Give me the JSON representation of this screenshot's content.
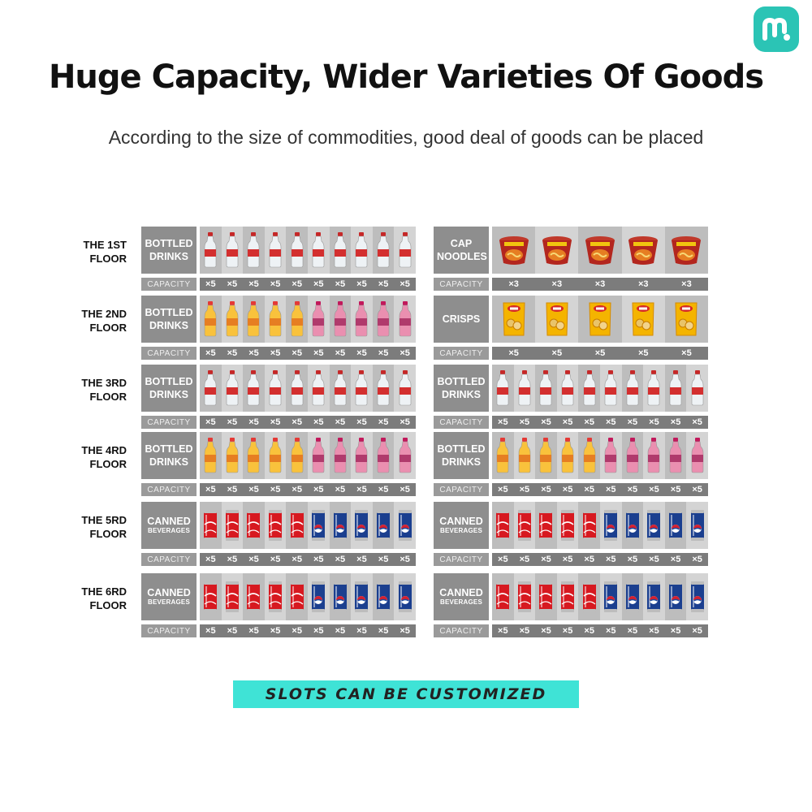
{
  "logo": {
    "letter": "m",
    "color": "#2bc4b5"
  },
  "header": {
    "title": "Huge Capacity, Wider Varieties Of Goods",
    "subtitle": "According to the size of commodities,  good deal of  goods can be placed"
  },
  "capacity_label": "CAPACITY",
  "floors": [
    {
      "label": "THE 1ST FLOOR",
      "left": {
        "category": "BOTTLED DRINKS",
        "sub": "",
        "items": [
          "water",
          "water",
          "water",
          "water",
          "water",
          "water",
          "water",
          "water",
          "water",
          "water"
        ],
        "capacity": [
          "×5",
          "×5",
          "×5",
          "×5",
          "×5",
          "×5",
          "×5",
          "×5",
          "×5",
          "×5"
        ]
      },
      "right": {
        "category": "CAP NOODLES",
        "sub": "",
        "items": [
          "noodle",
          "noodle",
          "noodle",
          "noodle",
          "noodle"
        ],
        "capacity": [
          "×3",
          "×3",
          "×3",
          "×3",
          "×3"
        ]
      }
    },
    {
      "label": "THE 2ND FLOOR",
      "left": {
        "category": "BOTTLED DRINKS",
        "sub": "",
        "items": [
          "orange",
          "orange",
          "orange",
          "orange",
          "orange",
          "pink",
          "pink",
          "pink",
          "pink",
          "pink"
        ],
        "capacity": [
          "×5",
          "×5",
          "×5",
          "×5",
          "×5",
          "×5",
          "×5",
          "×5",
          "×5",
          "×5"
        ]
      },
      "right": {
        "category": "CRISPS",
        "sub": "",
        "items": [
          "chips",
          "chips",
          "chips",
          "chips",
          "chips"
        ],
        "capacity": [
          "×5",
          "×5",
          "×5",
          "×5",
          "×5"
        ]
      }
    },
    {
      "label": "THE 3RD FLOOR",
      "left": {
        "category": "BOTTLED DRINKS",
        "sub": "",
        "items": [
          "water",
          "water",
          "water",
          "water",
          "water",
          "water",
          "water",
          "water",
          "water",
          "water"
        ],
        "capacity": [
          "×5",
          "×5",
          "×5",
          "×5",
          "×5",
          "×5",
          "×5",
          "×5",
          "×5",
          "×5"
        ]
      },
      "right": {
        "category": "BOTTLED DRINKS",
        "sub": "",
        "items": [
          "water",
          "water",
          "water",
          "water",
          "water",
          "water",
          "water",
          "water",
          "water",
          "water"
        ],
        "capacity": [
          "×5",
          "×5",
          "×5",
          "×5",
          "×5",
          "×5",
          "×5",
          "×5",
          "×5",
          "×5"
        ]
      }
    },
    {
      "label": "THE 4RD FLOOR",
      "left": {
        "category": "BOTTLED DRINKS",
        "sub": "",
        "items": [
          "orange",
          "orange",
          "orange",
          "orange",
          "orange",
          "pink",
          "pink",
          "pink",
          "pink",
          "pink"
        ],
        "capacity": [
          "×5",
          "×5",
          "×5",
          "×5",
          "×5",
          "×5",
          "×5",
          "×5",
          "×5",
          "×5"
        ]
      },
      "right": {
        "category": "BOTTLED DRINKS",
        "sub": "",
        "items": [
          "orange",
          "orange",
          "orange",
          "orange",
          "orange",
          "pink",
          "pink",
          "pink",
          "pink",
          "pink"
        ],
        "capacity": [
          "×5",
          "×5",
          "×5",
          "×5",
          "×5",
          "×5",
          "×5",
          "×5",
          "×5",
          "×5"
        ]
      }
    },
    {
      "label": "THE 5RD FLOOR",
      "left": {
        "category": "CANNED",
        "sub": "BEVERAGES",
        "items": [
          "coke",
          "coke",
          "coke",
          "coke",
          "coke",
          "pepsi",
          "pepsi",
          "pepsi",
          "pepsi",
          "pepsi"
        ],
        "capacity": [
          "×5",
          "×5",
          "×5",
          "×5",
          "×5",
          "×5",
          "×5",
          "×5",
          "×5",
          "×5"
        ]
      },
      "right": {
        "category": "CANNED",
        "sub": "BEVERAGES",
        "items": [
          "coke",
          "coke",
          "coke",
          "coke",
          "coke",
          "pepsi",
          "pepsi",
          "pepsi",
          "pepsi",
          "pepsi"
        ],
        "capacity": [
          "×5",
          "×5",
          "×5",
          "×5",
          "×5",
          "×5",
          "×5",
          "×5",
          "×5",
          "×5"
        ]
      }
    },
    {
      "label": "THE 6RD FLOOR",
      "left": {
        "category": "CANNED",
        "sub": "BEVERAGES",
        "items": [
          "coke",
          "coke",
          "coke",
          "coke",
          "coke",
          "pepsi",
          "pepsi",
          "pepsi",
          "pepsi",
          "pepsi"
        ],
        "capacity": [
          "×5",
          "×5",
          "×5",
          "×5",
          "×5",
          "×5",
          "×5",
          "×5",
          "×5",
          "×5"
        ]
      },
      "right": {
        "category": "CANNED",
        "sub": "BEVERAGES",
        "items": [
          "coke",
          "coke",
          "coke",
          "coke",
          "coke",
          "pepsi",
          "pepsi",
          "pepsi",
          "pepsi",
          "pepsi"
        ],
        "capacity": [
          "×5",
          "×5",
          "×5",
          "×5",
          "×5",
          "×5",
          "×5",
          "×5",
          "×5",
          "×5"
        ]
      }
    }
  ],
  "footer": {
    "banner": "SLOTS CAN BE CUSTOMIZED"
  },
  "colors": {
    "accent": "#3fe3d6",
    "shelf": "#c9c9c9",
    "label_bg": "#8e8e8e",
    "capacity_bg": "#7c7c7c"
  }
}
